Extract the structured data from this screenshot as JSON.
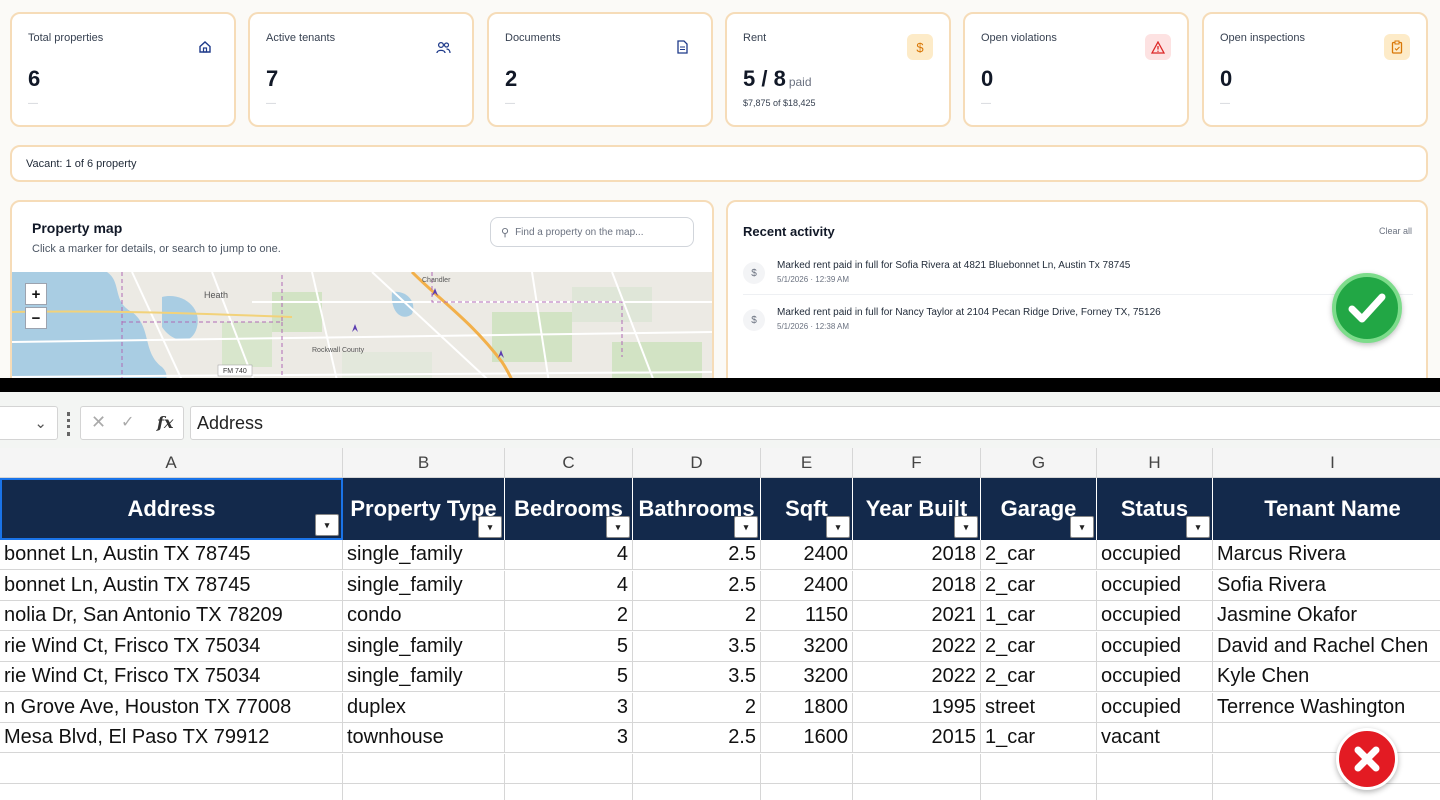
{
  "stats": [
    {
      "label": "Total properties",
      "value": "6",
      "dash": "—",
      "icon": "home-icon"
    },
    {
      "label": "Active tenants",
      "value": "7",
      "dash": "—",
      "icon": "users-icon"
    },
    {
      "label": "Documents",
      "value": "2",
      "dash": "—",
      "icon": "document-icon"
    },
    {
      "label": "Rent",
      "value": "5 / 8",
      "value_suffix": "paid",
      "sub": "$7,875 of $18,425",
      "icon": "dollar-icon"
    },
    {
      "label": "Open violations",
      "value": "0",
      "dash": "—",
      "icon": "warning-icon"
    },
    {
      "label": "Open inspections",
      "value": "0",
      "dash": "—",
      "icon": "clipboard-icon"
    }
  ],
  "vacant_text": "Vacant: 1 of 6 property",
  "map": {
    "title": "Property map",
    "subtitle": "Click a marker for details, or search to jump to one.",
    "search_placeholder": "Find a property on the map...",
    "zoom_in": "+",
    "zoom_out": "−",
    "labels": [
      "Heath",
      "Rockwall County",
      "Chandler",
      "FM 740"
    ]
  },
  "activity": {
    "title": "Recent activity",
    "clear_label": "Clear all",
    "items": [
      {
        "message": "Marked rent paid in full for Sofia Rivera at 4821 Bluebonnet Ln, Austin Tx 78745",
        "time": "5/1/2026 · 12:39 AM"
      },
      {
        "message": "Marked rent paid in full for Nancy Taylor at 2104 Pecan Ridge Drive, Forney TX, 75126",
        "time": "5/1/2026 · 12:38 AM"
      }
    ]
  },
  "spreadsheet": {
    "formula": "Address",
    "columns": [
      "A",
      "B",
      "C",
      "D",
      "E",
      "F",
      "G",
      "H",
      "I"
    ],
    "headers": [
      "Address",
      "Property Type",
      "Bedrooms",
      "Bathrooms",
      "Sqft",
      "Year Built",
      "Garage",
      "Status",
      "Tenant Name"
    ],
    "rows": [
      [
        "bonnet Ln, Austin TX 78745",
        "single_family",
        "4",
        "2.5",
        "2400",
        "2018",
        "2_car",
        "occupied",
        "Marcus Rivera"
      ],
      [
        "bonnet Ln, Austin TX 78745",
        "single_family",
        "4",
        "2.5",
        "2400",
        "2018",
        "2_car",
        "occupied",
        "Sofia Rivera"
      ],
      [
        "nolia Dr, San Antonio TX 78209",
        "condo",
        "2",
        "2",
        "1150",
        "2021",
        "1_car",
        "occupied",
        "Jasmine Okafor"
      ],
      [
        "rie Wind Ct, Frisco TX 75034",
        "single_family",
        "5",
        "3.5",
        "3200",
        "2022",
        "2_car",
        "occupied",
        "David and Rachel Chen"
      ],
      [
        "rie Wind Ct, Frisco TX 75034",
        "single_family",
        "5",
        "3.5",
        "3200",
        "2022",
        "2_car",
        "occupied",
        "Kyle Chen"
      ],
      [
        "n Grove Ave, Houston TX 77008",
        "duplex",
        "3",
        "2",
        "1800",
        "1995",
        "street",
        "occupied",
        "Terrence Washington"
      ],
      [
        " Mesa Blvd, El Paso TX 79912",
        "townhouse",
        "3",
        "2.5",
        "1600",
        "2015",
        "1_car",
        "vacant",
        ""
      ]
    ]
  },
  "colors": {
    "header_bg": "#13294b",
    "card_border": "#f6dcb8",
    "check_green": "#22a745",
    "x_red": "#e31b23"
  }
}
